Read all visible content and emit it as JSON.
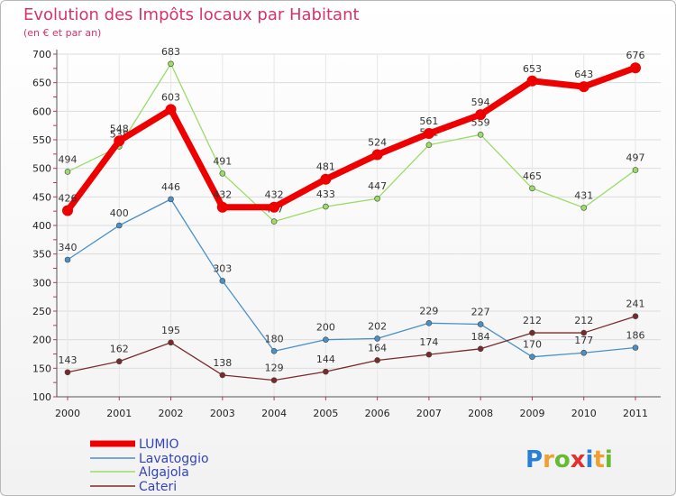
{
  "chart_data": {
    "type": "line",
    "title": "Evolution des Impôts locaux par Habitant",
    "subtitle": "(en € et par an)",
    "xlabel": "",
    "ylabel": "",
    "categories": [
      "2000",
      "2001",
      "2002",
      "2003",
      "2004",
      "2005",
      "2006",
      "2007",
      "2008",
      "2009",
      "2010",
      "2011"
    ],
    "ylim": [
      100,
      700
    ],
    "yticks": [
      100,
      150,
      200,
      250,
      300,
      350,
      400,
      450,
      500,
      550,
      600,
      650,
      700
    ],
    "grid": true,
    "legend_position": "bottom-left",
    "series": [
      {
        "name": "LUMIO",
        "color": "#ee0000",
        "values": [
          426,
          548,
          603,
          432,
          432,
          481,
          524,
          561,
          594,
          653,
          643,
          676
        ]
      },
      {
        "name": "Lavatoggio",
        "color": "#4a90c8",
        "values": [
          340,
          400,
          446,
          303,
          180,
          200,
          202,
          229,
          227,
          170,
          177,
          186
        ]
      },
      {
        "name": "Algajola",
        "color": "#99dd66",
        "values": [
          494,
          538,
          683,
          491,
          407,
          433,
          447,
          541,
          559,
          465,
          431,
          497
        ]
      },
      {
        "name": "Cateri",
        "color": "#7a2a2a",
        "values": [
          143,
          162,
          195,
          138,
          129,
          144,
          164,
          174,
          184,
          212,
          212,
          241
        ]
      }
    ]
  },
  "logo": {
    "letters": [
      "P",
      "r",
      "o",
      "x",
      "i",
      "t",
      "i"
    ],
    "colors": [
      "#2a7fd4",
      "#f0a030",
      "#66bb33",
      "#e03030",
      "#2a7fd4",
      "#f0a030",
      "#66bb33"
    ]
  }
}
